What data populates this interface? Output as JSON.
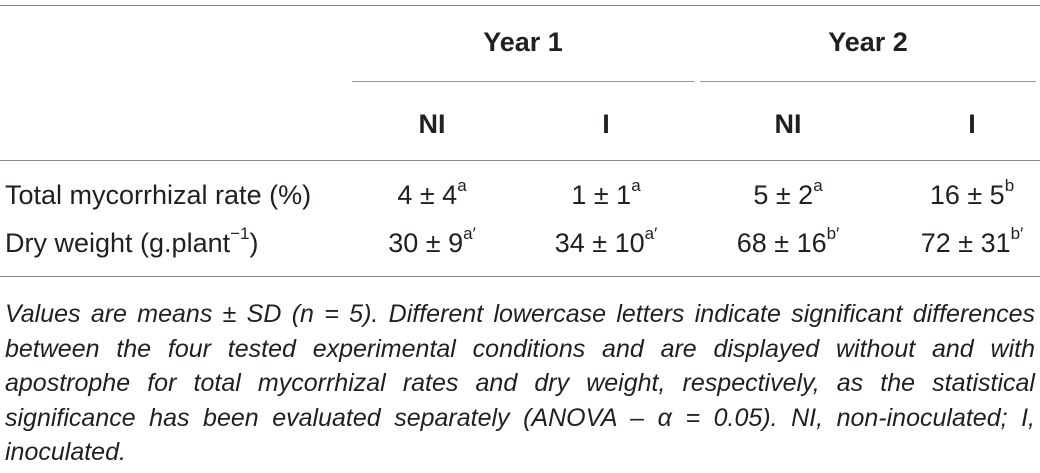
{
  "table": {
    "year_headers": [
      "Year 1",
      "Year 2"
    ],
    "sub_headers": [
      "NI",
      "I",
      "NI",
      "I"
    ],
    "rows": [
      {
        "label": "Total mycorrhizal rate (%)",
        "cells": [
          {
            "value": "4 ± 4",
            "sup": "a"
          },
          {
            "value": "1 ± 1",
            "sup": "a"
          },
          {
            "value": "5 ± 2",
            "sup": "a"
          },
          {
            "value": "16 ± 5",
            "sup": "b"
          }
        ]
      },
      {
        "label_main": "Dry weight (g.plant",
        "label_sup": "−1",
        "label_end": ")",
        "cells": [
          {
            "value": "30 ± 9",
            "sup": "a′"
          },
          {
            "value": "34 ± 10",
            "sup": "a′"
          },
          {
            "value": "68 ± 16",
            "sup": "b′"
          },
          {
            "value": "72 ± 31",
            "sup": "b′"
          }
        ]
      }
    ]
  },
  "footnote": "Values are means ± SD (n = 5). Different lowercase letters indicate significant differences between the four tested experimental conditions and are displayed without and with apostrophe for total mycorrhizal rates and dry weight, respectively, as the statistical significance has been evaluated separately (ANOVA – α = 0.05). NI, non-inoculated; I, inoculated."
}
